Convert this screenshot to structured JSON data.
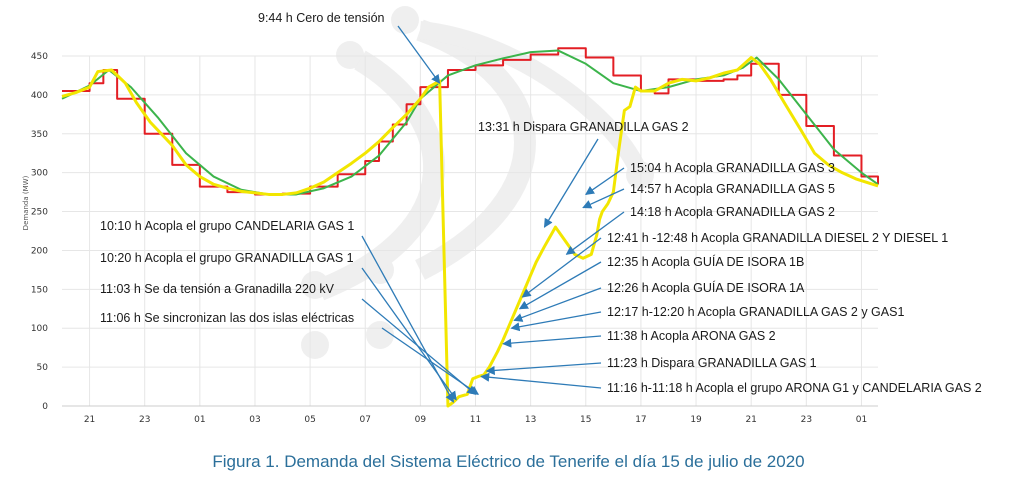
{
  "caption": "Figura 1. Demanda del Sistema Eléctrico de Tenerife el día 15 de julio de 2020",
  "chart_data": {
    "type": "line",
    "title": "",
    "xlabel": "",
    "ylabel": "Demanda (MW)",
    "ylim": [
      0,
      450
    ],
    "xlim": [
      20.0,
      49.6
    ],
    "yticks": [
      0,
      50,
      100,
      150,
      200,
      250,
      300,
      350,
      400,
      450
    ],
    "xtick_positions": [
      21,
      23,
      25,
      27,
      29,
      31,
      33,
      35,
      37,
      39,
      41,
      43,
      45,
      47,
      49
    ],
    "xtick_labels": [
      "21",
      "23",
      "01",
      "03",
      "05",
      "07",
      "09",
      "11",
      "13",
      "15",
      "17",
      "19",
      "21",
      "23",
      "01"
    ],
    "grid": true,
    "legend": "none",
    "colors": {
      "red": "#e31e24",
      "green": "#3cb44b",
      "yellow": "#f2e600",
      "grid": "#e6e6e6",
      "arrow": "#2e7bb7"
    },
    "series": [
      {
        "style": "step",
        "color": "#e31e24",
        "x": [
          20.0,
          21.0,
          21.5,
          22.0,
          23.0,
          24.0,
          25.0,
          26.0,
          27.0,
          28.0,
          29.0,
          30.0,
          31.0,
          31.5,
          32.0,
          32.5,
          33.0,
          34.0,
          35.0,
          36.0,
          37.0,
          38.0,
          39.0,
          40.0,
          41.0,
          41.5,
          42.0,
          43.0,
          44.0,
          44.5,
          45.0,
          46.0,
          47.0,
          48.0,
          49.0,
          49.6
        ],
        "y": [
          405,
          415,
          432,
          395,
          350,
          310,
          282,
          275,
          272,
          273,
          282,
          298,
          315,
          340,
          362,
          388,
          410,
          432,
          438,
          445,
          452,
          460,
          448,
          425,
          405,
          402,
          420,
          418,
          420,
          425,
          440,
          400,
          360,
          322,
          295,
          285
        ]
      },
      {
        "style": "line",
        "color": "#3cb44b",
        "x": [
          20.0,
          21.0,
          21.7,
          22.5,
          23.5,
          24.5,
          25.5,
          26.5,
          27.5,
          28.5,
          29.5,
          30.5,
          31.5,
          32.5,
          33.0,
          34.0,
          35.0,
          36.0,
          37.0,
          38.0,
          39.0,
          40.0,
          41.0,
          42.0,
          43.0,
          44.0,
          44.7,
          45.2,
          46.0,
          47.0,
          48.0,
          49.0,
          49.6
        ],
        "y": [
          395,
          412,
          432,
          410,
          370,
          325,
          295,
          278,
          272,
          272,
          280,
          295,
          322,
          365,
          395,
          425,
          438,
          447,
          455,
          457,
          440,
          415,
          405,
          410,
          420,
          425,
          435,
          448,
          420,
          375,
          330,
          300,
          285
        ]
      },
      {
        "style": "line",
        "color": "#f2e600",
        "x": [
          20.0,
          20.5,
          21.0,
          21.3,
          21.8,
          22.3,
          22.7,
          23.2,
          24.0,
          24.5,
          25.0,
          25.5,
          26.0,
          26.5,
          27.0,
          27.5,
          28.0,
          28.5,
          29.0,
          29.5,
          30.0,
          30.5,
          31.0,
          31.5,
          32.0,
          32.5,
          33.0,
          33.3,
          33.7,
          33.7,
          34.0,
          34.2,
          34.4,
          34.7,
          34.9,
          35.1,
          35.3,
          35.5,
          35.8,
          36.0,
          36.3,
          36.6,
          36.9,
          37.2,
          37.5,
          37.9,
          38.2,
          38.6,
          38.9,
          39.2,
          39.4,
          39.5,
          39.6,
          39.8,
          40.0,
          40.2,
          40.4,
          40.6,
          40.8,
          41.0,
          41.5,
          42.0,
          42.5,
          43.0,
          43.5,
          44.0,
          44.5,
          45.0,
          45.3,
          45.7,
          46.2,
          46.8,
          47.3,
          47.8,
          48.3,
          48.8,
          49.6
        ],
        "y": [
          398,
          403,
          410,
          430,
          432,
          415,
          390,
          365,
          335,
          310,
          295,
          285,
          280,
          276,
          274,
          272,
          272,
          274,
          280,
          288,
          300,
          312,
          325,
          340,
          358,
          375,
          395,
          410,
          418,
          415,
          0,
          5,
          12,
          15,
          35,
          38,
          40,
          50,
          70,
          85,
          110,
          135,
          160,
          185,
          205,
          230,
          215,
          195,
          190,
          195,
          220,
          240,
          250,
          260,
          275,
          330,
          380,
          385,
          410,
          405,
          405,
          415,
          420,
          418,
          422,
          428,
          432,
          448,
          440,
          420,
          390,
          355,
          325,
          310,
          300,
          292,
          283
        ]
      }
    ],
    "annotations": [
      {
        "text": "9:44 h Cero de tensión",
        "x": 33.7,
        "y": 415
      },
      {
        "text": "13:31 h Dispara GRANADILLA GAS 2",
        "x": 37.5,
        "y": 230
      },
      {
        "text": "15:04 h Acopla GRANADILLA GAS 3",
        "x": 39.0,
        "y": 272
      },
      {
        "text": "14:57 h Acopla GRANADILLA GAS 5",
        "x": 38.9,
        "y": 255
      },
      {
        "text": "14:18 h Acopla GRANADILLA GAS 2",
        "x": 38.3,
        "y": 195
      },
      {
        "text": "12:41 h -12:48 h Acopla GRANADILLA DIESEL 2 Y DIESEL 1",
        "x": 36.7,
        "y": 140
      },
      {
        "text": "12:35 h Acopla GUÍA DE ISORA 1B",
        "x": 36.6,
        "y": 125
      },
      {
        "text": "12:26 h Acopla GUÍA DE ISORA 1A",
        "x": 36.4,
        "y": 110
      },
      {
        "text": "12:17 h-12:20 h Acopla GRANADILLA GAS 2 y GAS1",
        "x": 36.3,
        "y": 100
      },
      {
        "text": "11:38 h Acopla ARONA GAS 2",
        "x": 36.0,
        "y": 80
      },
      {
        "text": "11:23 h Dispara GRANADILLA GAS 1",
        "x": 35.4,
        "y": 45
      },
      {
        "text": "11:16 h-11:18 h Acopla el grupo ARONA G1 y CANDELARIA GAS 2",
        "x": 35.2,
        "y": 38
      },
      {
        "text": "10:10 h Acopla el grupo CANDELARIA GAS 1",
        "x": 34.2,
        "y": 5
      },
      {
        "text": "10:20 h Acopla el grupo GRANADILLA GAS 1",
        "x": 34.3,
        "y": 8
      },
      {
        "text": "11:03 h Se da tensión a Granadilla 220 kV",
        "x": 35.0,
        "y": 15
      },
      {
        "text": "11:06 h Se sincronizan las dos islas eléctricas",
        "x": 35.1,
        "y": 15
      }
    ]
  }
}
